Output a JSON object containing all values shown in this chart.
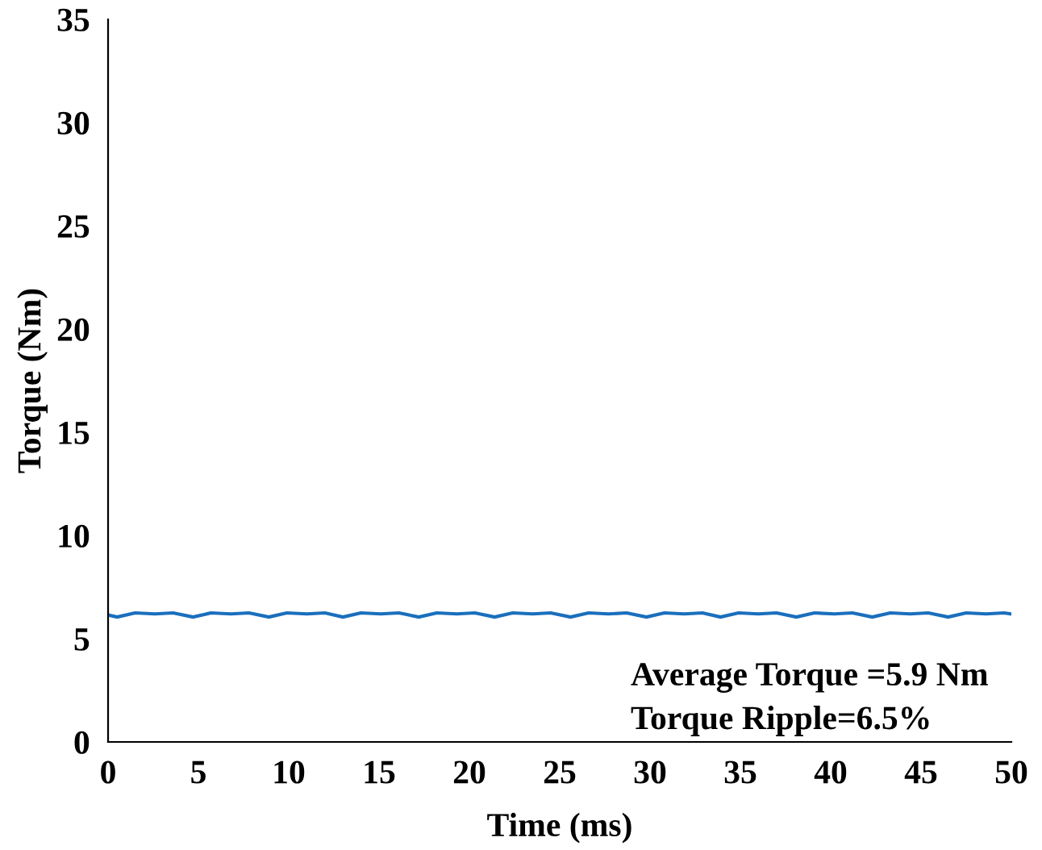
{
  "chart_data": {
    "type": "line",
    "xlabel": "Time (ms)",
    "ylabel": "Torque (Nm)",
    "xlim": [
      0,
      50
    ],
    "ylim": [
      0,
      35
    ],
    "xticks": [
      0,
      5,
      10,
      15,
      20,
      25,
      30,
      35,
      40,
      45,
      50
    ],
    "yticks": [
      0,
      5,
      10,
      15,
      20,
      25,
      30,
      35
    ],
    "grid": false,
    "legend": false,
    "series": [
      {
        "color": "#1a6fbd",
        "x": [
          0,
          0.5,
          1.5,
          2.6,
          3.6,
          4.7,
          5.7,
          6.8,
          7.8,
          8.9,
          9.9,
          11.0,
          12.0,
          13.0,
          14.0,
          15.1,
          16.1,
          17.2,
          18.2,
          19.3,
          20.3,
          21.4,
          22.4,
          23.5,
          24.5,
          25.6,
          26.6,
          27.7,
          28.7,
          29.8,
          30.8,
          31.9,
          32.9,
          33.9,
          34.9,
          36.0,
          37.0,
          38.1,
          39.1,
          40.2,
          41.2,
          42.3,
          43.3,
          44.4,
          45.4,
          46.5,
          47.5,
          48.6,
          49.6,
          50
        ],
        "values": [
          6.15,
          6.05,
          6.25,
          6.2,
          6.25,
          6.05,
          6.25,
          6.2,
          6.25,
          6.05,
          6.25,
          6.2,
          6.25,
          6.05,
          6.25,
          6.2,
          6.25,
          6.05,
          6.25,
          6.2,
          6.25,
          6.05,
          6.25,
          6.2,
          6.25,
          6.05,
          6.25,
          6.2,
          6.25,
          6.05,
          6.25,
          6.2,
          6.25,
          6.05,
          6.25,
          6.2,
          6.25,
          6.05,
          6.25,
          6.2,
          6.25,
          6.05,
          6.25,
          6.2,
          6.25,
          6.05,
          6.25,
          6.2,
          6.25,
          6.2
        ]
      }
    ],
    "annotations": [
      "Average Torque =5.9 Nm",
      "Torque Ripple=6.5%"
    ]
  }
}
